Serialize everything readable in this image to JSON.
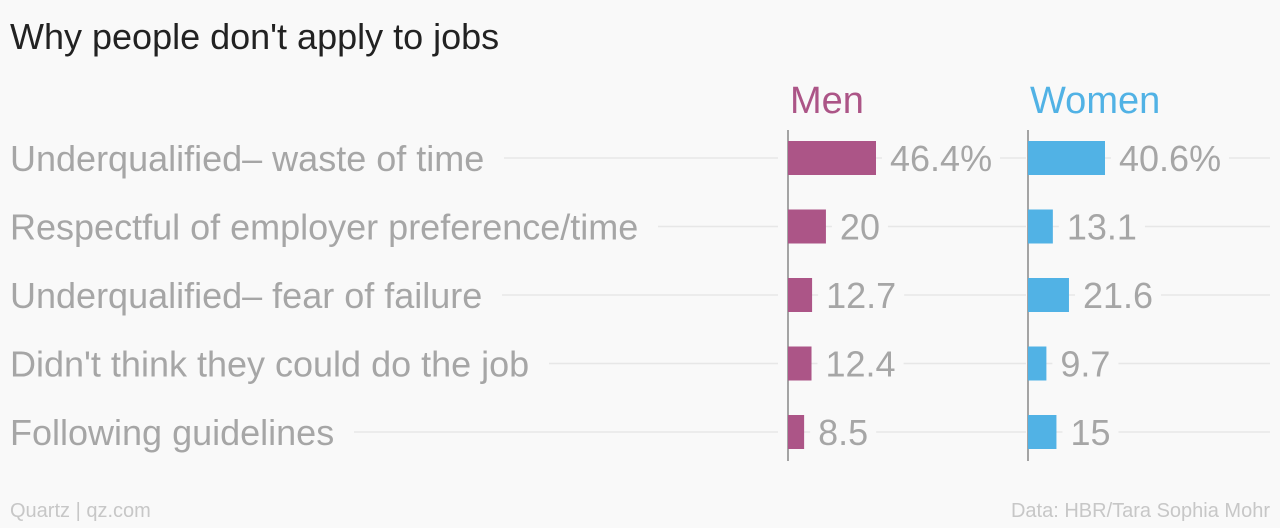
{
  "title": "Why people don't apply to jobs",
  "footer": {
    "source": "Quartz | qz.com",
    "credit": "Data: HBR/Tara Sophia Mohr"
  },
  "colors": {
    "men": "#ac5587",
    "women": "#51b2e5",
    "label": "#a6a6a6",
    "grid": "#e7e7e7",
    "axis": "#888888"
  },
  "chart_data": {
    "type": "bar",
    "orientation": "horizontal",
    "title": "Why people don't apply to jobs",
    "categories": [
      "Underqualified– waste of time",
      "Respectful of employer preference/time",
      "Underqualified– fear of failure",
      "Didn't think they could do the job",
      "Following guidelines"
    ],
    "series": [
      {
        "name": "Men",
        "values": [
          46.4,
          20,
          12.7,
          12.4,
          8.5
        ],
        "labels": [
          "46.4%",
          "20",
          "12.7",
          "12.4",
          "8.5"
        ]
      },
      {
        "name": "Women",
        "values": [
          40.6,
          13.1,
          21.6,
          9.7,
          15
        ],
        "labels": [
          "40.6%",
          "13.1",
          "21.6",
          "9.7",
          "15"
        ]
      }
    ],
    "xlim": [
      0,
      100
    ],
    "grid": true,
    "legend": "panel-headers"
  }
}
